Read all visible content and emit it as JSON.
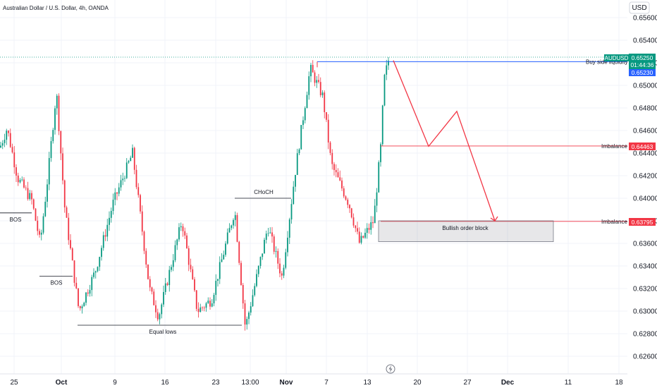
{
  "header": {
    "title": "Australian Dollar / U.S. Dollar, 4h, OANDA"
  },
  "currency_button": {
    "label": "USD"
  },
  "colors": {
    "up": "#089981",
    "down": "#f23645",
    "blue": "#2962ff",
    "grid": "#f0f3fa",
    "axis_text": "#131722"
  },
  "chart_data": {
    "type": "candlestick",
    "title": "Australian Dollar / U.S. Dollar, 4h, OANDA",
    "y_axis": {
      "currency": "USD",
      "ticks": [
        "0.65600",
        "0.65400",
        "0.65200",
        "0.65000",
        "0.64800",
        "0.64600",
        "0.64400",
        "0.64200",
        "0.64000",
        "0.63800",
        "0.63600",
        "0.63400",
        "0.63200",
        "0.63000",
        "0.62800",
        "0.62600"
      ],
      "ylim": [
        0.6255,
        0.657
      ]
    },
    "x_axis": {
      "ticks": [
        "25",
        "Oct",
        "9",
        "16",
        "23",
        "13:00",
        "Nov",
        "7",
        "13",
        "20",
        "27",
        "Dec",
        "11",
        "18"
      ],
      "bold": [
        "Oct",
        "Nov",
        "Dec"
      ]
    },
    "price_path": [
      {
        "x": 0,
        "y": 0.6445
      },
      {
        "x": 10,
        "y": 0.6462
      },
      {
        "x": 25,
        "y": 0.6418
      },
      {
        "x": 45,
        "y": 0.6398
      },
      {
        "x": 57,
        "y": 0.636
      },
      {
        "x": 68,
        "y": 0.642
      },
      {
        "x": 80,
        "y": 0.6495
      },
      {
        "x": 92,
        "y": 0.639
      },
      {
        "x": 112,
        "y": 0.63
      },
      {
        "x": 135,
        "y": 0.6335
      },
      {
        "x": 160,
        "y": 0.6395
      },
      {
        "x": 188,
        "y": 0.644
      },
      {
        "x": 212,
        "y": 0.632
      },
      {
        "x": 225,
        "y": 0.6295
      },
      {
        "x": 258,
        "y": 0.638
      },
      {
        "x": 280,
        "y": 0.63
      },
      {
        "x": 300,
        "y": 0.631
      },
      {
        "x": 333,
        "y": 0.639
      },
      {
        "x": 348,
        "y": 0.6285
      },
      {
        "x": 380,
        "y": 0.6375
      },
      {
        "x": 400,
        "y": 0.633
      },
      {
        "x": 418,
        "y": 0.642
      },
      {
        "x": 440,
        "y": 0.6515
      },
      {
        "x": 458,
        "y": 0.649
      },
      {
        "x": 470,
        "y": 0.643
      },
      {
        "x": 495,
        "y": 0.6395
      },
      {
        "x": 510,
        "y": 0.636
      },
      {
        "x": 530,
        "y": 0.638
      },
      {
        "x": 540,
        "y": 0.6445
      },
      {
        "x": 545,
        "y": 0.6505
      },
      {
        "x": 552,
        "y": 0.6525
      }
    ],
    "current_price": {
      "symbol": "AUDUSD",
      "price": "0.65250",
      "countdown": "01:44:36",
      "bid": "0.65230"
    },
    "levels": [
      {
        "label": "Buy side liquidity",
        "price": 0.6521
      },
      {
        "label": "Imbalance",
        "price": 0.64463,
        "badge": "0.64463"
      },
      {
        "label": "Imbalance",
        "price": 0.63795,
        "badge": "0.63795"
      }
    ],
    "annotations": [
      {
        "label": "BOS"
      },
      {
        "label": "BOS"
      },
      {
        "label": "CHoCH"
      },
      {
        "label": "Equal lows"
      },
      {
        "label": "Bullish order block"
      }
    ],
    "projection": [
      {
        "price": 0.6522
      },
      {
        "price": 0.6446
      },
      {
        "price": 0.6477
      },
      {
        "price": 0.638
      }
    ]
  }
}
